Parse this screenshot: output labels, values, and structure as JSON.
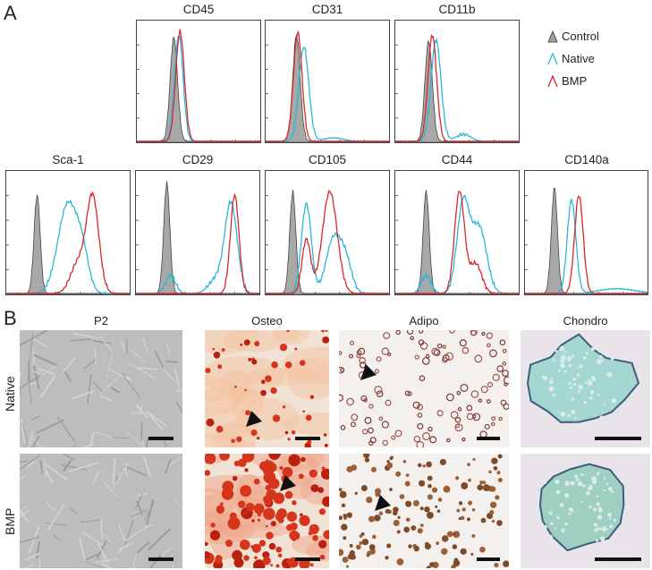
{
  "panel_a": {
    "letter": "A",
    "legend": [
      {
        "label": "Control",
        "color": "#9e9e9e",
        "filled": true
      },
      {
        "label": "Native",
        "color": "#2ab8d8",
        "filled": false
      },
      {
        "label": "BMP",
        "color": "#d8282e",
        "filled": false
      }
    ],
    "histograms_top": [
      "CD45",
      "CD31",
      "CD11b"
    ],
    "histograms_bottom": [
      "Sca-1",
      "CD29",
      "CD105",
      "CD44",
      "CD140a"
    ]
  },
  "panel_b": {
    "letter": "B",
    "columns": [
      "P2",
      "Osteo",
      "Adipo",
      "Chondro"
    ],
    "rows": [
      "Native",
      "BMP"
    ]
  },
  "chart_data": [
    {
      "type": "area",
      "title": "CD45",
      "series": [
        {
          "name": "Control",
          "peak": 0.33
        },
        {
          "name": "Native",
          "peak": 0.36
        },
        {
          "name": "BMP",
          "peak": 0.37
        }
      ]
    },
    {
      "type": "area",
      "title": "CD31",
      "series": [
        {
          "name": "Control",
          "peak": 0.25
        },
        {
          "name": "Native",
          "peak": 0.33
        },
        {
          "name": "BMP",
          "peak": 0.26
        }
      ]
    },
    {
      "type": "area",
      "title": "CD11b",
      "series": [
        {
          "name": "Control",
          "peak": 0.27
        },
        {
          "name": "Native",
          "peak": 0.35
        },
        {
          "name": "BMP",
          "peak": 0.31
        }
      ]
    },
    {
      "type": "area",
      "title": "Sca-1",
      "series": [
        {
          "name": "Control",
          "peak": 0.25
        },
        {
          "name": "Native",
          "peak": 0.55
        },
        {
          "name": "BMP",
          "peak": 0.73
        }
      ]
    },
    {
      "type": "area",
      "title": "CD29",
      "series": [
        {
          "name": "Control",
          "peak": 0.3
        },
        {
          "name": "Native",
          "peak": 0.8
        },
        {
          "name": "BMP",
          "peak": 0.82
        }
      ]
    },
    {
      "type": "area",
      "title": "CD105",
      "series": [
        {
          "name": "Control",
          "peak": 0.23
        },
        {
          "name": "Native",
          "peak": 0.35
        },
        {
          "name": "BMP",
          "peak": 0.52
        }
      ]
    },
    {
      "type": "area",
      "title": "CD44",
      "series": [
        {
          "name": "Control",
          "peak": 0.25
        },
        {
          "name": "Native",
          "peak": 0.55
        },
        {
          "name": "BMP",
          "peak": 0.53
        }
      ]
    },
    {
      "type": "area",
      "title": "CD140a",
      "series": [
        {
          "name": "Control",
          "peak": 0.24
        },
        {
          "name": "Native",
          "peak": 0.42
        },
        {
          "name": "BMP",
          "peak": 0.45
        }
      ]
    }
  ]
}
